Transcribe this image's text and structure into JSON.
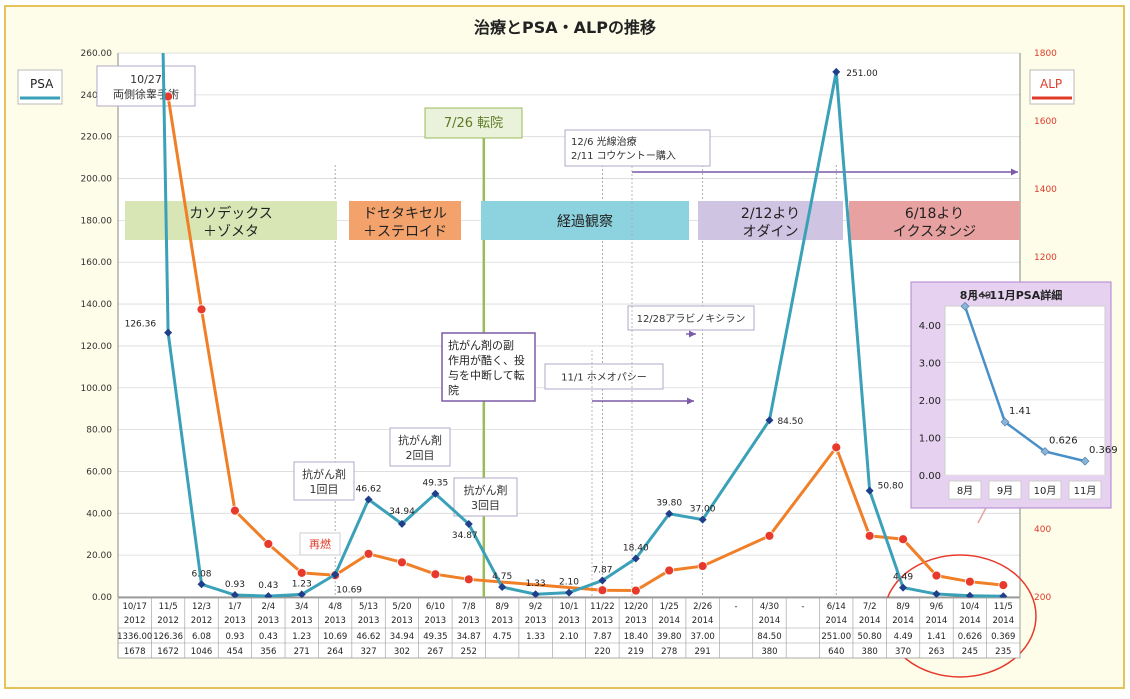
{
  "chart_data": {
    "type": "line",
    "title": "治療とPSA・ALPの推移",
    "left_axis": {
      "label": "PSA",
      "min": 0,
      "max": 260,
      "ticks": [
        "0.00",
        "20.00",
        "40.00",
        "60.00",
        "80.00",
        "100.00",
        "120.00",
        "140.00",
        "160.00",
        "180.00",
        "200.00",
        "220.00",
        "240.00",
        "260.00"
      ]
    },
    "right_axis": {
      "label": "ALP",
      "min": 200,
      "max": 1800,
      "ticks": [
        "200",
        "400",
        "600",
        "800",
        "1000",
        "1200",
        "1400",
        "1600",
        "1800"
      ]
    },
    "categories": [
      {
        "date": "10/17",
        "year": "2012"
      },
      {
        "date": "11/5",
        "year": "2012"
      },
      {
        "date": "12/3",
        "year": "2012"
      },
      {
        "date": "1/7",
        "year": "2013"
      },
      {
        "date": "2/4",
        "year": "2013"
      },
      {
        "date": "3/4",
        "year": "2013"
      },
      {
        "date": "4/8",
        "year": "2013"
      },
      {
        "date": "5/13",
        "year": "2013"
      },
      {
        "date": "5/20",
        "year": "2013"
      },
      {
        "date": "6/10",
        "year": "2013"
      },
      {
        "date": "7/8",
        "year": "2013"
      },
      {
        "date": "8/9",
        "year": "2013"
      },
      {
        "date": "9/2",
        "year": "2013"
      },
      {
        "date": "10/1",
        "year": "2013"
      },
      {
        "date": "11/22",
        "year": "2013"
      },
      {
        "date": "12/20",
        "year": "2013"
      },
      {
        "date": "1/25",
        "year": "2014"
      },
      {
        "date": "2/26",
        "year": "2014"
      },
      {
        "date": "-",
        "year": ""
      },
      {
        "date": "4/30",
        "year": "2014"
      },
      {
        "date": "-",
        "year": ""
      },
      {
        "date": "6/14",
        "year": "2014"
      },
      {
        "date": "7/2",
        "year": "2014"
      },
      {
        "date": "8/9",
        "year": "2014"
      },
      {
        "date": "9/6",
        "year": "2014"
      },
      {
        "date": "10/4",
        "year": "2014"
      },
      {
        "date": "11/5",
        "year": "2014"
      }
    ],
    "psa_row": [
      "1336.00",
      "126.36",
      "6.08",
      "0.93",
      "0.43",
      "1.23",
      "10.69",
      "46.62",
      "34.94",
      "49.35",
      "34.87",
      "4.75",
      "1.33",
      "2.10",
      "7.87",
      "18.40",
      "39.80",
      "37.00",
      "",
      "84.50",
      "",
      "251.00",
      "50.80",
      "4.49",
      "1.41",
      "0.626",
      "0.369"
    ],
    "alp_row": [
      "1678",
      "1672",
      "1046",
      "454",
      "356",
      "271",
      "264",
      "327",
      "302",
      "267",
      "252",
      "",
      "",
      "",
      "220",
      "219",
      "278",
      "291",
      "",
      "380",
      "",
      "640",
      "380",
      "370",
      "263",
      "245",
      "235"
    ],
    "series": [
      {
        "name": "PSA",
        "color": "#3aa1b8",
        "points": [
          {
            "i": 1,
            "v": 126.36,
            "label": "126.36"
          },
          {
            "i": 2,
            "v": 6.08,
            "label": "6.08"
          },
          {
            "i": 3,
            "v": 0.93,
            "label": "0.93"
          },
          {
            "i": 4,
            "v": 0.43,
            "label": "0.43"
          },
          {
            "i": 5,
            "v": 1.23,
            "label": "1.23"
          },
          {
            "i": 6,
            "v": 10.69,
            "label": "10.69"
          },
          {
            "i": 7,
            "v": 46.62,
            "label": "46.62"
          },
          {
            "i": 8,
            "v": 34.94,
            "label": "34.94"
          },
          {
            "i": 9,
            "v": 49.35,
            "label": "49.35"
          },
          {
            "i": 10,
            "v": 34.87,
            "label": "34.87"
          },
          {
            "i": 11,
            "v": 4.75,
            "label": "4.75"
          },
          {
            "i": 12,
            "v": 1.33,
            "label": "1.33"
          },
          {
            "i": 13,
            "v": 2.1,
            "label": "2.10"
          },
          {
            "i": 14,
            "v": 7.87,
            "label": "7.87"
          },
          {
            "i": 15,
            "v": 18.4,
            "label": "18.40"
          },
          {
            "i": 16,
            "v": 39.8,
            "label": "39.80"
          },
          {
            "i": 17,
            "v": 37.0,
            "label": "37.00"
          },
          {
            "i": 19,
            "v": 84.5,
            "label": "84.50"
          },
          {
            "i": 21,
            "v": 251.0,
            "label": "251.00"
          },
          {
            "i": 22,
            "v": 50.8,
            "label": "50.80"
          },
          {
            "i": 23,
            "v": 4.49,
            "label": "4.49"
          },
          {
            "i": 24,
            "v": 1.41,
            "label": ""
          },
          {
            "i": 25,
            "v": 0.626,
            "label": ""
          },
          {
            "i": 26,
            "v": 0.369,
            "label": ""
          }
        ]
      },
      {
        "name": "ALP",
        "color": "#f07f28",
        "points": [
          {
            "i": 1,
            "v": 1672
          },
          {
            "i": 2,
            "v": 1046
          },
          {
            "i": 3,
            "v": 454
          },
          {
            "i": 4,
            "v": 356
          },
          {
            "i": 5,
            "v": 271
          },
          {
            "i": 6,
            "v": 264
          },
          {
            "i": 7,
            "v": 327
          },
          {
            "i": 8,
            "v": 302
          },
          {
            "i": 9,
            "v": 267
          },
          {
            "i": 10,
            "v": 252
          },
          {
            "i": 14,
            "v": 220
          },
          {
            "i": 15,
            "v": 219
          },
          {
            "i": 16,
            "v": 278
          },
          {
            "i": 17,
            "v": 291
          },
          {
            "i": 19,
            "v": 380
          },
          {
            "i": 21,
            "v": 640
          },
          {
            "i": 22,
            "v": 380
          },
          {
            "i": 23,
            "v": 370
          },
          {
            "i": 24,
            "v": 263
          },
          {
            "i": 25,
            "v": 245
          },
          {
            "i": 26,
            "v": 235
          }
        ]
      }
    ],
    "phases": [
      {
        "text": [
          "カソデックス",
          "＋ゾメタ"
        ],
        "color": "#d7e6b4"
      },
      {
        "text": [
          "ドセタキセル",
          "＋ステロイド"
        ],
        "color": "#f2a26a"
      },
      {
        "text": [
          "経過観察"
        ],
        "color": "#8dd3df"
      },
      {
        "text": [
          "2/12より",
          "オダイン"
        ],
        "color": "#cfc4e2"
      },
      {
        "text": [
          "6/18より",
          "イクスタンジ"
        ],
        "color": "#e8a1a1"
      }
    ],
    "annotations": {
      "surgery": [
        "10/27",
        "両側徐睾手術"
      ],
      "transfer": "7/26 転院",
      "radiation": [
        "12/6 光線治療",
        "2/11 コウケントー購入"
      ],
      "arabino": "12/28アラビノキシラン",
      "homeo": "11/1 ホメオパシー",
      "stop": [
        "抗がん剤の副",
        "作用が酷く、投",
        "与を中断して転",
        "院"
      ],
      "chemo1": [
        "抗がん剤",
        "1回目"
      ],
      "chemo2": [
        "抗がん剤",
        "2回目"
      ],
      "chemo3": [
        "抗がん剤",
        "3回目"
      ],
      "relapse": "再燃"
    },
    "inset": {
      "title": "8月～11月PSA詳細",
      "categories": [
        "8月",
        "9月",
        "10月",
        "11月"
      ],
      "values": [
        4.49,
        1.41,
        0.626,
        0.369
      ],
      "labels": [
        "4.49",
        "1.41",
        "0.626",
        "0.369"
      ],
      "ticks": [
        "0.00",
        "1.00",
        "2.00",
        "3.00",
        "4.00"
      ],
      "ylim": [
        0,
        4.5
      ]
    }
  }
}
